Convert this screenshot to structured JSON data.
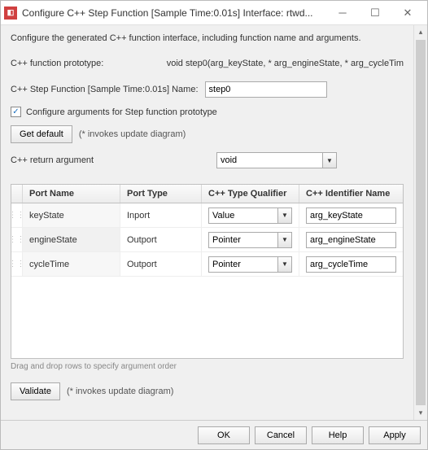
{
  "window": {
    "title": "Configure C++ Step Function [Sample Time:0.01s] Interface: rtwd..."
  },
  "description": "Configure the generated C++ function interface, including function name and arguments.",
  "prototype": {
    "label": "C++ function prototype:",
    "value": "void step0(arg_keyState, * arg_engineState, * arg_cycleTim"
  },
  "nameRow": {
    "label": "C++ Step Function [Sample Time:0.01s] Name:",
    "value": "step0"
  },
  "configureArgs": {
    "checked": true,
    "label": "Configure arguments for Step function prototype"
  },
  "getDefault": {
    "button": "Get default",
    "hint": "(* invokes update diagram)"
  },
  "returnArg": {
    "label": "C++ return argument",
    "value": "void"
  },
  "table": {
    "headers": {
      "portName": "Port Name",
      "portType": "Port Type",
      "qualifier": "C++ Type Qualifier",
      "identifier": "C++ Identifier Name"
    },
    "rows": [
      {
        "portName": "keyState",
        "portType": "Inport",
        "qualifier": "Value",
        "identifier": "arg_keyState"
      },
      {
        "portName": "engineState",
        "portType": "Outport",
        "qualifier": "Pointer",
        "identifier": "arg_engineState"
      },
      {
        "portName": "cycleTime",
        "portType": "Outport",
        "qualifier": "Pointer",
        "identifier": "arg_cycleTime"
      }
    ]
  },
  "dragNote": "Drag and drop rows to specify argument order",
  "validate": {
    "button": "Validate",
    "hint": "(* invokes update diagram)"
  },
  "footer": {
    "ok": "OK",
    "cancel": "Cancel",
    "help": "Help",
    "apply": "Apply"
  }
}
